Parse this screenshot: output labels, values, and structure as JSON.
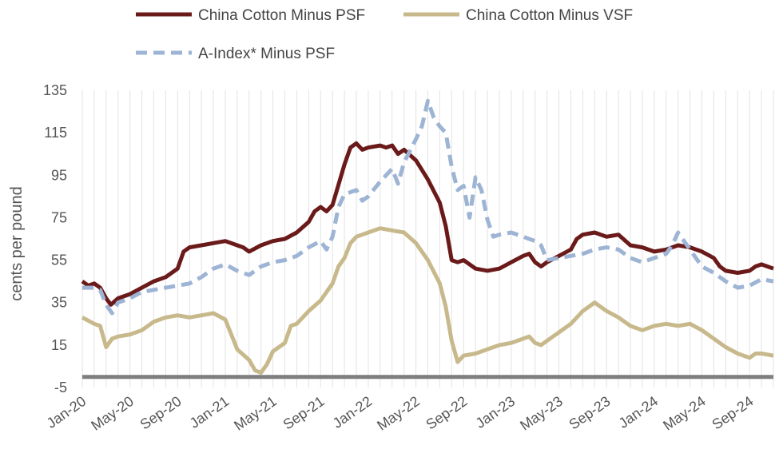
{
  "chart_data": {
    "type": "line",
    "title": "",
    "xlabel": "",
    "ylabel": "cents per pound",
    "ylim": [
      -5,
      135
    ],
    "yticks": [
      135,
      115,
      95,
      75,
      55,
      35,
      15,
      -5
    ],
    "xtick_labels": [
      "Jan-20",
      "May-20",
      "Sep-20",
      "Jan-21",
      "May-21",
      "Sep-21",
      "Jan-22",
      "May-22",
      "Sep-22",
      "Jan-23",
      "May-23",
      "Sep-23",
      "Jan-24",
      "May-24",
      "Sep-24"
    ],
    "x_range_months": [
      0,
      58
    ],
    "grid": "vertical",
    "legend_position": "top",
    "zero_line": {
      "value": 0,
      "color": "#7f7f7f"
    },
    "series": [
      {
        "name": "China Cotton Minus PSF",
        "color": "#6b1a1a",
        "style": "solid",
        "points": [
          [
            0,
            45
          ],
          [
            0.5,
            43
          ],
          [
            1,
            44
          ],
          [
            1.5,
            42
          ],
          [
            2,
            37
          ],
          [
            2.4,
            34
          ],
          [
            3,
            37
          ],
          [
            4,
            39
          ],
          [
            5,
            42
          ],
          [
            6,
            45
          ],
          [
            7,
            47
          ],
          [
            8,
            51
          ],
          [
            8.5,
            59
          ],
          [
            9,
            61
          ],
          [
            10,
            62
          ],
          [
            11,
            63
          ],
          [
            12,
            64
          ],
          [
            13,
            62
          ],
          [
            13.5,
            61
          ],
          [
            14,
            59
          ],
          [
            15,
            62
          ],
          [
            16,
            64
          ],
          [
            17,
            65
          ],
          [
            18,
            68
          ],
          [
            19,
            73
          ],
          [
            19.5,
            78
          ],
          [
            20,
            80
          ],
          [
            20.5,
            78
          ],
          [
            21,
            81
          ],
          [
            22,
            100
          ],
          [
            22.5,
            108
          ],
          [
            23,
            110
          ],
          [
            23.5,
            107
          ],
          [
            24,
            108
          ],
          [
            25,
            109
          ],
          [
            25.5,
            108
          ],
          [
            26,
            109
          ],
          [
            26.5,
            105
          ],
          [
            27,
            107
          ],
          [
            28,
            102
          ],
          [
            29,
            93
          ],
          [
            30,
            82
          ],
          [
            30.5,
            71
          ],
          [
            31,
            55
          ],
          [
            31.5,
            54
          ],
          [
            32,
            55
          ],
          [
            33,
            51
          ],
          [
            34,
            50
          ],
          [
            35,
            51
          ],
          [
            36,
            54
          ],
          [
            37,
            57
          ],
          [
            37.5,
            58
          ],
          [
            38,
            54
          ],
          [
            38.5,
            52
          ],
          [
            39,
            54
          ],
          [
            40,
            57
          ],
          [
            41,
            60
          ],
          [
            41.5,
            65
          ],
          [
            42,
            67
          ],
          [
            43,
            68
          ],
          [
            44,
            66
          ],
          [
            45,
            67
          ],
          [
            46,
            62
          ],
          [
            47,
            61
          ],
          [
            48,
            59
          ],
          [
            49,
            60
          ],
          [
            50,
            62
          ],
          [
            51,
            61
          ],
          [
            52,
            59
          ],
          [
            53,
            56
          ],
          [
            53.5,
            52
          ],
          [
            54,
            50
          ],
          [
            55,
            49
          ],
          [
            56,
            50
          ],
          [
            56.5,
            52
          ],
          [
            57,
            53
          ],
          [
            58,
            51
          ]
        ]
      },
      {
        "name": "China Cotton Minus VSF",
        "color": "#c8b98c",
        "style": "solid",
        "points": [
          [
            0,
            28
          ],
          [
            1,
            25
          ],
          [
            1.5,
            24
          ],
          [
            2,
            14
          ],
          [
            2.5,
            18
          ],
          [
            3,
            19
          ],
          [
            4,
            20
          ],
          [
            5,
            22
          ],
          [
            6,
            26
          ],
          [
            7,
            28
          ],
          [
            8,
            29
          ],
          [
            9,
            28
          ],
          [
            10,
            29
          ],
          [
            11,
            30
          ],
          [
            12,
            27
          ],
          [
            13,
            13
          ],
          [
            14,
            8
          ],
          [
            14.5,
            3
          ],
          [
            15,
            2
          ],
          [
            15.5,
            6
          ],
          [
            16,
            12
          ],
          [
            17,
            16
          ],
          [
            17.5,
            24
          ],
          [
            18,
            25
          ],
          [
            19,
            31
          ],
          [
            20,
            36
          ],
          [
            21,
            44
          ],
          [
            21.5,
            52
          ],
          [
            22,
            56
          ],
          [
            22.5,
            63
          ],
          [
            23,
            66
          ],
          [
            24,
            68
          ],
          [
            25,
            70
          ],
          [
            26,
            69
          ],
          [
            27,
            68
          ],
          [
            28,
            63
          ],
          [
            29,
            55
          ],
          [
            30,
            44
          ],
          [
            30.5,
            33
          ],
          [
            31,
            17
          ],
          [
            31.5,
            7
          ],
          [
            32,
            10
          ],
          [
            33,
            11
          ],
          [
            34,
            13
          ],
          [
            35,
            15
          ],
          [
            36,
            16
          ],
          [
            37,
            18
          ],
          [
            37.5,
            19
          ],
          [
            38,
            16
          ],
          [
            38.5,
            15
          ],
          [
            39,
            17
          ],
          [
            40,
            21
          ],
          [
            41,
            25
          ],
          [
            42,
            31
          ],
          [
            43,
            35
          ],
          [
            44,
            31
          ],
          [
            45,
            28
          ],
          [
            46,
            24
          ],
          [
            47,
            22
          ],
          [
            48,
            24
          ],
          [
            49,
            25
          ],
          [
            50,
            24
          ],
          [
            51,
            25
          ],
          [
            52,
            22
          ],
          [
            53,
            18
          ],
          [
            54,
            14
          ],
          [
            55,
            11
          ],
          [
            56,
            9
          ],
          [
            56.5,
            11
          ],
          [
            57,
            11
          ],
          [
            58,
            10
          ]
        ]
      },
      {
        "name": "A-Index* Minus PSF",
        "color": "#9db4d4",
        "style": "dashed",
        "points": [
          [
            0,
            42
          ],
          [
            1,
            42
          ],
          [
            1.5,
            41
          ],
          [
            2,
            34
          ],
          [
            2.5,
            30
          ],
          [
            3,
            35
          ],
          [
            4,
            37
          ],
          [
            5,
            40
          ],
          [
            6,
            41
          ],
          [
            7,
            42
          ],
          [
            8,
            43
          ],
          [
            9,
            44
          ],
          [
            10,
            47
          ],
          [
            11,
            51
          ],
          [
            12,
            53
          ],
          [
            13,
            50
          ],
          [
            14,
            48
          ],
          [
            15,
            52
          ],
          [
            16,
            54
          ],
          [
            17,
            55
          ],
          [
            18,
            57
          ],
          [
            19,
            61
          ],
          [
            20,
            64
          ],
          [
            20.5,
            60
          ],
          [
            21,
            66
          ],
          [
            21.5,
            80
          ],
          [
            22,
            86
          ],
          [
            23,
            88
          ],
          [
            23.5,
            83
          ],
          [
            24,
            85
          ],
          [
            25,
            92
          ],
          [
            26,
            98
          ],
          [
            26.5,
            91
          ],
          [
            27,
            101
          ],
          [
            28,
            112
          ],
          [
            28.5,
            118
          ],
          [
            29,
            130
          ],
          [
            29.5,
            122
          ],
          [
            30,
            118
          ],
          [
            30.5,
            115
          ],
          [
            31,
            99
          ],
          [
            31.5,
            88
          ],
          [
            32,
            90
          ],
          [
            32.5,
            75
          ],
          [
            33,
            94
          ],
          [
            33.5,
            88
          ],
          [
            34,
            74
          ],
          [
            34.5,
            66
          ],
          [
            35,
            67
          ],
          [
            36,
            68
          ],
          [
            37,
            66
          ],
          [
            38,
            64
          ],
          [
            38.5,
            62
          ],
          [
            39,
            55
          ],
          [
            40,
            56
          ],
          [
            41,
            57
          ],
          [
            42,
            58
          ],
          [
            43,
            60
          ],
          [
            44,
            61
          ],
          [
            45,
            60
          ],
          [
            46,
            56
          ],
          [
            47,
            54
          ],
          [
            48,
            56
          ],
          [
            49,
            58
          ],
          [
            49.5,
            62
          ],
          [
            50,
            68
          ],
          [
            51,
            60
          ],
          [
            52,
            52
          ],
          [
            53,
            49
          ],
          [
            54,
            45
          ],
          [
            55,
            42
          ],
          [
            56,
            43
          ],
          [
            57,
            46
          ],
          [
            58,
            45
          ]
        ]
      }
    ]
  }
}
